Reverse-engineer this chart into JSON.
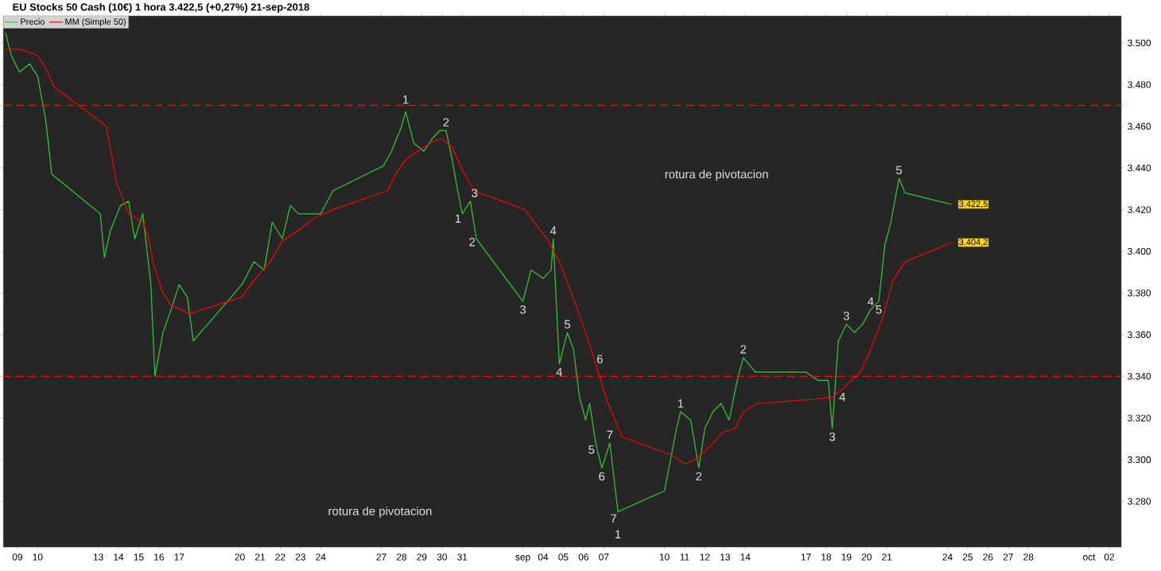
{
  "chart_data": {
    "type": "line",
    "title": "EU Stocks 50 Cash (10€)   1 hora   3.422,5 (+0,27%)   21-sep-2018",
    "legend": "top left",
    "xlim": [
      "2018-08-08T07:12",
      "2018-10-02T14:24"
    ],
    "xticks": [
      {
        "value": "2018-08-09",
        "label": "09"
      },
      {
        "value": "2018-08-10",
        "label": "10"
      },
      {
        "value": "2018-08-13",
        "label": "13"
      },
      {
        "value": "2018-08-14",
        "label": "14"
      },
      {
        "value": "2018-08-15",
        "label": "15"
      },
      {
        "value": "2018-08-16",
        "label": "16"
      },
      {
        "value": "2018-08-17",
        "label": "17"
      },
      {
        "value": "2018-08-20",
        "label": "20"
      },
      {
        "value": "2018-08-21",
        "label": "21"
      },
      {
        "value": "2018-08-22",
        "label": "22"
      },
      {
        "value": "2018-08-23",
        "label": "23"
      },
      {
        "value": "2018-08-24",
        "label": "24"
      },
      {
        "value": "2018-08-27",
        "label": "27"
      },
      {
        "value": "2018-08-28",
        "label": "28"
      },
      {
        "value": "2018-08-29",
        "label": "29"
      },
      {
        "value": "2018-08-30",
        "label": "30"
      },
      {
        "value": "2018-08-31",
        "label": "31"
      },
      {
        "value": "2018-09-03",
        "label": "sep"
      },
      {
        "value": "2018-09-04",
        "label": "04"
      },
      {
        "value": "2018-09-05",
        "label": "05"
      },
      {
        "value": "2018-09-06",
        "label": "06"
      },
      {
        "value": "2018-09-07",
        "label": "07"
      },
      {
        "value": "2018-09-10",
        "label": "10"
      },
      {
        "value": "2018-09-11",
        "label": "11"
      },
      {
        "value": "2018-09-12",
        "label": "12"
      },
      {
        "value": "2018-09-13",
        "label": "13"
      },
      {
        "value": "2018-09-14",
        "label": "14"
      },
      {
        "value": "2018-09-17",
        "label": "17"
      },
      {
        "value": "2018-09-18",
        "label": "18"
      },
      {
        "value": "2018-09-19",
        "label": "19"
      },
      {
        "value": "2018-09-20",
        "label": "20"
      },
      {
        "value": "2018-09-21",
        "label": "21"
      },
      {
        "value": "2018-09-24",
        "label": "24"
      },
      {
        "value": "2018-09-25",
        "label": "25"
      },
      {
        "value": "2018-09-26",
        "label": "26"
      },
      {
        "value": "2018-09-27",
        "label": "27"
      },
      {
        "value": "2018-09-28",
        "label": "28"
      },
      {
        "value": "2018-10-01",
        "label": "oct"
      },
      {
        "value": "2018-10-02",
        "label": "02"
      }
    ],
    "ylim": [
      3258,
      3513
    ],
    "yticks": [
      {
        "value": 3280,
        "label": "3.280"
      },
      {
        "value": 3300,
        "label": "3.300"
      },
      {
        "value": 3320,
        "label": "3.320"
      },
      {
        "value": 3340,
        "label": "3.340"
      },
      {
        "value": 3360,
        "label": "3.360"
      },
      {
        "value": 3380,
        "label": "3.380"
      },
      {
        "value": 3400,
        "label": "3.400"
      },
      {
        "value": 3420,
        "label": "3.420"
      },
      {
        "value": 3440,
        "label": "3.440"
      },
      {
        "value": 3460,
        "label": "3.460"
      },
      {
        "value": 3480,
        "label": "3.480"
      },
      {
        "value": 3500,
        "label": "3.500"
      }
    ],
    "series": [
      {
        "name": "Precio",
        "color": "#33cc33",
        "x": [
          "2018-08-08T09:36",
          "2018-08-08T16:48",
          "2018-08-09T02:24",
          "2018-08-09T14:24",
          "2018-08-10T00:00",
          "2018-08-10T09:36",
          "2018-08-10T16:48",
          "2018-08-13T02:24",
          "2018-08-13T07:12",
          "2018-08-13T14:24",
          "2018-08-14T02:24",
          "2018-08-14T12:00",
          "2018-08-14T19:12",
          "2018-08-15T04:48",
          "2018-08-15T14:24",
          "2018-08-15T19:12",
          "2018-08-16T04:48",
          "2018-08-16T14:24",
          "2018-08-17T00:00",
          "2018-08-17T09:36",
          "2018-08-17T16:48",
          "2018-08-20T02:24",
          "2018-08-20T16:48",
          "2018-08-21T04:48",
          "2018-08-21T14:24",
          "2018-08-22T02:24",
          "2018-08-22T12:00",
          "2018-08-22T21:36",
          "2018-08-23T09:36",
          "2018-08-24T00:00",
          "2018-08-24T14:24",
          "2018-08-27T02:24",
          "2018-08-27T12:00",
          "2018-08-28T00:00",
          "2018-08-28T04:48",
          "2018-08-28T14:24",
          "2018-08-29T02:24",
          "2018-08-29T12:00",
          "2018-08-29T21:36",
          "2018-08-30T04:48",
          "2018-08-30T12:00",
          "2018-08-30T16:48",
          "2018-08-31T00:00",
          "2018-08-31T09:36",
          "2018-08-31T16:48",
          "2018-09-03T00:00",
          "2018-09-03T09:36",
          "2018-09-04T00:00",
          "2018-09-04T09:36",
          "2018-09-04T12:00",
          "2018-09-04T19:12",
          "2018-09-05T04:48",
          "2018-09-05T12:00",
          "2018-09-05T19:12",
          "2018-09-06T02:24",
          "2018-09-06T07:12",
          "2018-09-06T14:24",
          "2018-09-06T21:36",
          "2018-09-07T07:12",
          "2018-09-07T16:48",
          "2018-09-10T00:00",
          "2018-09-10T14:24",
          "2018-09-10T19:12",
          "2018-09-11T07:12",
          "2018-09-11T16:48",
          "2018-09-12T00:00",
          "2018-09-12T09:36",
          "2018-09-12T19:12",
          "2018-09-13T04:48",
          "2018-09-13T14:24",
          "2018-09-13T21:36",
          "2018-09-14T12:00",
          "2018-09-17T00:00",
          "2018-09-17T14:24",
          "2018-09-18T02:24",
          "2018-09-18T07:12",
          "2018-09-18T14:24",
          "2018-09-19T00:00",
          "2018-09-19T09:36",
          "2018-09-19T19:12",
          "2018-09-20T04:48",
          "2018-09-20T14:24",
          "2018-09-20T21:36",
          "2018-09-21T04:48",
          "2018-09-21T14:24",
          "2018-09-21T21:36",
          "2018-09-24T04:48"
        ],
        "values": [
          3505,
          3494,
          3486,
          3490,
          3484,
          3463,
          3437,
          3418,
          3397,
          3410,
          3422,
          3424,
          3406,
          3418,
          3384,
          3340,
          3361,
          3372,
          3384,
          3378,
          3357,
          3384,
          3395,
          3391,
          3414,
          3406,
          3422,
          3418,
          3418,
          3418,
          3429,
          3441,
          3448,
          3460,
          3467,
          3452,
          3448,
          3454,
          3458,
          3458,
          3444,
          3433,
          3418,
          3424,
          3406,
          3376,
          3391,
          3387,
          3391,
          3406,
          3346,
          3361,
          3353,
          3330,
          3319,
          3327,
          3308,
          3296,
          3308,
          3275,
          3285,
          3315,
          3323,
          3319,
          3296,
          3315,
          3323,
          3327,
          3319,
          3338,
          3349,
          3342,
          3342,
          3338,
          3338,
          3315,
          3357,
          3365,
          3361,
          3365,
          3372,
          3376,
          3403,
          3414,
          3435,
          3428,
          3422.5
        ]
      },
      {
        "name": "MM (Simple 50)",
        "color": "#ff0000",
        "x": [
          "2018-08-08T09:36",
          "2018-08-09T02:24",
          "2018-08-10T00:00",
          "2018-08-10T09:36",
          "2018-08-10T19:12",
          "2018-08-13T09:36",
          "2018-08-13T21:36",
          "2018-08-14T12:00",
          "2018-08-15T04:48",
          "2018-08-15T12:00",
          "2018-08-15T16:48",
          "2018-08-16T04:48",
          "2018-08-16T14:24",
          "2018-08-17T02:24",
          "2018-08-17T12:00",
          "2018-08-20T02:24",
          "2018-08-20T16:48",
          "2018-08-21T12:00",
          "2018-08-22T02:24",
          "2018-08-22T21:36",
          "2018-08-23T16:48",
          "2018-08-24T14:24",
          "2018-08-27T07:12",
          "2018-08-27T16:48",
          "2018-08-28T04:48",
          "2018-08-29T02:24",
          "2018-08-29T14:24",
          "2018-08-30T00:00",
          "2018-08-30T12:00",
          "2018-08-31T00:00",
          "2018-08-31T14:24",
          "2018-09-03T02:24",
          "2018-09-03T16:48",
          "2018-09-04T04:48",
          "2018-09-04T19:12",
          "2018-09-05T09:36",
          "2018-09-06T02:24",
          "2018-09-06T14:24",
          "2018-09-07T04:48",
          "2018-09-07T21:36",
          "2018-09-10T09:36",
          "2018-09-11T00:00",
          "2018-09-11T12:00",
          "2018-09-12T00:00",
          "2018-09-12T09:36",
          "2018-09-12T21:36",
          "2018-09-13T12:00",
          "2018-09-13T21:36",
          "2018-09-14T14:24",
          "2018-09-17T09:36",
          "2018-09-18T07:12",
          "2018-09-18T19:12",
          "2018-09-19T16:48",
          "2018-09-20T04:48",
          "2018-09-20T19:12",
          "2018-09-21T07:12",
          "2018-09-21T21:36",
          "2018-09-24T04:48"
        ],
        "values": [
          3497,
          3497,
          3494,
          3488,
          3479,
          3460,
          3433,
          3418,
          3414,
          3406,
          3395,
          3380,
          3374,
          3372,
          3370,
          3378,
          3386,
          3395,
          3405,
          3410,
          3416,
          3420,
          3429,
          3437,
          3444,
          3450,
          3453,
          3454,
          3450,
          3439,
          3429,
          3420,
          3412,
          3406,
          3395,
          3380,
          3361,
          3346,
          3327,
          3311,
          3302,
          3298,
          3300,
          3304,
          3308,
          3313,
          3315,
          3323,
          3327,
          3329,
          3330,
          3334,
          3342,
          3353,
          3368,
          3386,
          3395,
          3404.2
        ]
      }
    ],
    "ref_lines": [
      {
        "axis": "y",
        "value": 3340,
        "color": "#ff0000",
        "line_style": "dashed"
      },
      {
        "axis": "y",
        "value": 3470,
        "color": "#ff0000",
        "line_style": "dashed"
      }
    ],
    "annotations": [
      {
        "text": "1",
        "x": "2018-08-28T04:48",
        "y": 3467
      },
      {
        "text": "2",
        "x": "2018-08-30T04:48",
        "y": 3458
      },
      {
        "text": "3",
        "x": "2018-08-31T09:36",
        "y": 3424
      },
      {
        "text": "1",
        "x": "2018-08-31T00:00",
        "y": 3418
      },
      {
        "text": "2",
        "x": "2018-08-31T16:48",
        "y": 3406
      },
      {
        "text": "4",
        "x": "2018-09-04T12:00",
        "y": 3406
      },
      {
        "text": "3",
        "x": "2018-09-03T00:00",
        "y": 3376
      },
      {
        "text": "5",
        "x": "2018-09-05T04:48",
        "y": 3361
      },
      {
        "text": "4",
        "x": "2018-09-04T19:12",
        "y": 3346
      },
      {
        "text": "6",
        "x": "2018-09-06T14:24",
        "y": 3346
      },
      {
        "text": "7",
        "x": "2018-09-07T07:12",
        "y": 3308
      },
      {
        "text": "5",
        "x": "2018-09-06T14:24",
        "y": 3308
      },
      {
        "text": "6",
        "x": "2018-09-06T21:36",
        "y": 3296
      },
      {
        "text": "7",
        "x": "2018-09-07T16:48",
        "y": 3275
      },
      {
        "text": "1",
        "x": "2018-09-07T16:48",
        "y": 3275
      },
      {
        "text": "1",
        "x": "2018-09-10T19:12",
        "y": 3323
      },
      {
        "text": "2",
        "x": "2018-09-11T16:48",
        "y": 3296
      },
      {
        "text": "2",
        "x": "2018-09-13T21:36",
        "y": 3349
      },
      {
        "text": "3",
        "x": "2018-09-19T00:00",
        "y": 3365
      },
      {
        "text": "4",
        "x": "2018-09-20T04:48",
        "y": 3372
      },
      {
        "text": "5",
        "x": "2018-09-20T14:24",
        "y": 3376
      },
      {
        "text": "4",
        "x": "2018-09-18T19:12",
        "y": 3334
      },
      {
        "text": "3",
        "x": "2018-09-18T07:12",
        "y": 3315
      },
      {
        "text": "5",
        "x": "2018-09-21T14:24",
        "y": 3435
      },
      "rotura de pivotacion",
      "rotura de pivotacion",
      {
        "text": "3.422,5",
        "x": "2018-09-24T04:48",
        "y": 3422.5
      },
      {
        "text": "3.404,2",
        "x": "2018-09-24T04:48",
        "y": 3404.2
      }
    ]
  }
}
